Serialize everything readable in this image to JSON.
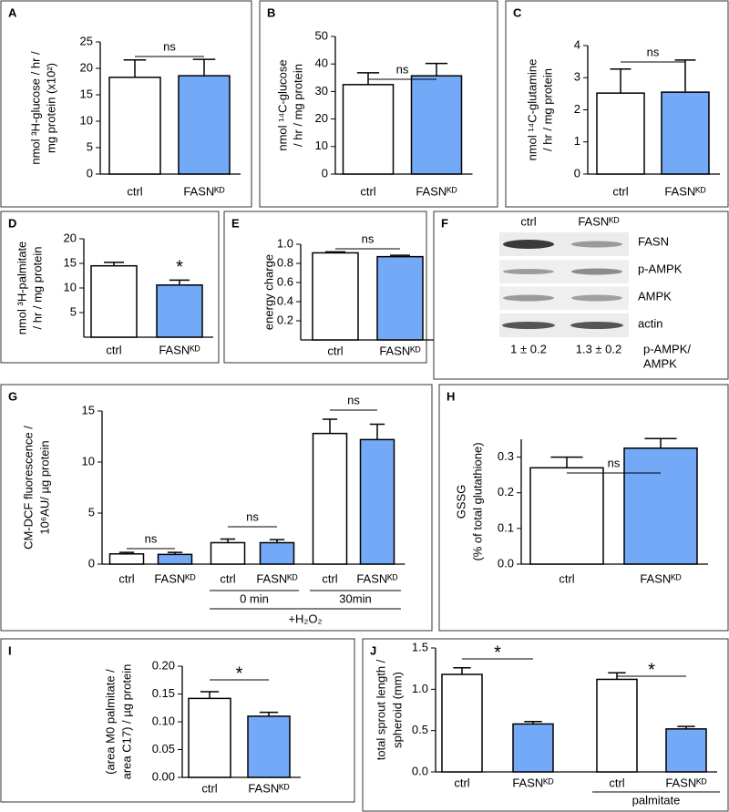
{
  "chart_data": [
    {
      "type": "bar",
      "panel": "A",
      "ylabel": [
        "nmol ³H-glucose / hr /",
        "mg protein (x10²)"
      ],
      "categories": [
        "ctrl",
        "FASNᴷᴰ"
      ],
      "values": [
        18.3,
        18.6
      ],
      "errors": [
        3.3,
        3.1
      ],
      "colors": [
        "#ffffff",
        "#74a9f7"
      ],
      "ylim": [
        0,
        25
      ],
      "yticks": [
        0,
        5,
        10,
        15,
        20,
        25
      ],
      "annotations": [
        "ns"
      ]
    },
    {
      "type": "bar",
      "panel": "B",
      "ylabel": [
        "nmol ¹⁴C-glucose",
        "/ hr / mg protein"
      ],
      "categories": [
        "ctrl",
        "FASNᴷᴰ"
      ],
      "values": [
        32.5,
        35.7
      ],
      "errors": [
        4.3,
        4.5
      ],
      "colors": [
        "#ffffff",
        "#74a9f7"
      ],
      "ylim": [
        0,
        50
      ],
      "yticks": [
        0,
        10,
        20,
        30,
        40,
        50
      ],
      "annotations": [
        "ns"
      ]
    },
    {
      "type": "bar",
      "panel": "C",
      "ylabel": [
        "nmol ¹⁴C-glutamine",
        "/ hr / mg protein"
      ],
      "categories": [
        "ctrl",
        "FASNᴷᴰ"
      ],
      "values": [
        2.52,
        2.55
      ],
      "errors": [
        0.75,
        1.0
      ],
      "colors": [
        "#ffffff",
        "#74a9f7"
      ],
      "ylim": [
        0,
        4
      ],
      "yticks": [
        0,
        1,
        2,
        3,
        4
      ],
      "annotations": [
        "ns"
      ]
    },
    {
      "type": "bar",
      "panel": "D",
      "ylabel": [
        "nmol ³H-palmitate",
        "/ hr / mg protein"
      ],
      "categories": [
        "ctrl",
        "FASNᴷᴰ"
      ],
      "values": [
        14.5,
        10.6
      ],
      "errors": [
        0.7,
        1.0
      ],
      "colors": [
        "#ffffff",
        "#74a9f7"
      ],
      "ylim": [
        0,
        20
      ],
      "yticks": [
        5,
        10,
        15,
        20
      ],
      "annotations": [
        "*"
      ]
    },
    {
      "type": "bar",
      "panel": "E",
      "ylabel": [
        "energy charge"
      ],
      "categories": [
        "ctrl",
        "FASNᴷᴰ"
      ],
      "values": [
        0.91,
        0.87
      ],
      "errors": [
        0.01,
        0.015
      ],
      "colors": [
        "#ffffff",
        "#74a9f7"
      ],
      "ylim": [
        0,
        1
      ],
      "yticks": [
        0.2,
        0.4,
        0.6,
        0.8,
        {
          "value": 1,
          "label": "1.0"
        }
      ],
      "annotations": [
        "ns"
      ]
    },
    {
      "type": "bar",
      "panel": "G",
      "ylabel": [
        "CM-DCF fluorescence /",
        "10⁶AU/ µg protein"
      ],
      "categories": [
        "ctrl",
        "FASNᴷᴰ",
        "ctrl",
        "FASNᴷᴰ",
        "ctrl",
        "FASNᴷᴰ"
      ],
      "values": [
        1.0,
        0.95,
        2.1,
        2.1,
        12.8,
        12.2
      ],
      "errors": [
        0.15,
        0.2,
        0.35,
        0.3,
        1.4,
        1.5
      ],
      "colors": [
        "#ffffff",
        "#74a9f7",
        "#ffffff",
        "#74a9f7",
        "#ffffff",
        "#74a9f7"
      ],
      "ylim": [
        0,
        15
      ],
      "yticks": [
        0,
        5,
        10,
        15
      ],
      "annotations": [
        "ns",
        "ns",
        "ns"
      ],
      "group_labels": [
        "0 min",
        "30min"
      ],
      "group_label": "+H₂O₂"
    },
    {
      "type": "bar",
      "panel": "H",
      "ylabel": [
        "GSSG",
        "(% of total glutathione)"
      ],
      "categories": [
        "ctrl",
        "FASNᴷᴰ"
      ],
      "values": [
        0.27,
        0.325
      ],
      "errors": [
        0.03,
        0.027
      ],
      "colors": [
        "#ffffff",
        "#74a9f7"
      ],
      "ylim": [
        0,
        0.35
      ],
      "yticks": [
        {
          "value": 0,
          "label": "0.0"
        },
        0.1,
        0.2,
        0.3
      ],
      "annotations": [
        "ns"
      ]
    },
    {
      "type": "bar",
      "panel": "I",
      "ylabel": [
        "(area M0 palmitate /",
        "area C17) / µg protein"
      ],
      "categories": [
        "ctrl",
        "FASNᴷᴰ"
      ],
      "values": [
        0.142,
        0.11
      ],
      "errors": [
        0.012,
        0.007
      ],
      "colors": [
        "#ffffff",
        "#74a9f7"
      ],
      "ylim": [
        0,
        0.2
      ],
      "yticks": [
        {
          "value": 0,
          "label": "0.00"
        },
        0.05,
        {
          "value": 0.1,
          "label": "0.10"
        },
        0.15,
        {
          "value": 0.2,
          "label": "0.20"
        }
      ],
      "annotations": [
        "*"
      ]
    },
    {
      "type": "bar",
      "panel": "J",
      "ylabel": [
        "total sprout length /",
        "spheroid (mm)"
      ],
      "categories": [
        "ctrl",
        "FASNᴷᴰ",
        "ctrl",
        "FASNᴷᴰ"
      ],
      "values": [
        1.18,
        0.58,
        1.12,
        0.52
      ],
      "errors": [
        0.08,
        0.03,
        0.08,
        0.03
      ],
      "colors": [
        "#ffffff",
        "#74a9f7",
        "#ffffff",
        "#74a9f7"
      ],
      "ylim": [
        0,
        1.5
      ],
      "yticks": [
        {
          "value": 0,
          "label": "0.0"
        },
        0.5,
        {
          "value": 1,
          "label": "1.0"
        },
        1.5
      ],
      "annotations": [
        "*",
        "*"
      ],
      "group_labels": [
        "palmitate"
      ]
    }
  ],
  "blot": {
    "panel": "F",
    "columns": [
      "ctrl",
      "FASNᴷᴰ"
    ],
    "rows": [
      "FASN",
      "p-AMPK",
      "AMPK",
      "actin"
    ],
    "quantification": [
      "1 ± 0.2",
      "1.3 ± 0.2"
    ],
    "quantification_label": [
      "p-AMPK/",
      "AMPK"
    ]
  }
}
